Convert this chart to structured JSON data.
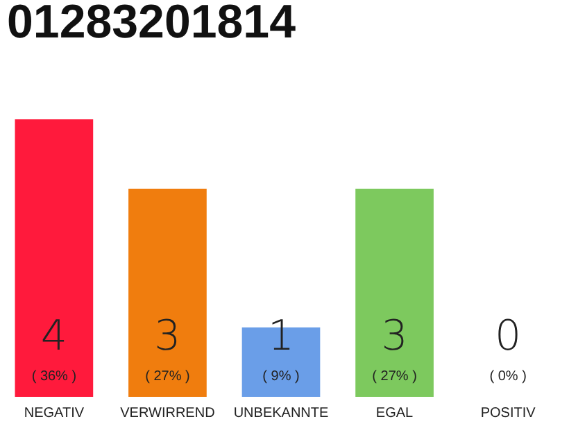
{
  "chart_data": {
    "type": "bar",
    "title": "01283201814",
    "categories": [
      "NEGATIV",
      "VERWIRREND",
      "UNBEKANNTE",
      "EGAL",
      "POSITIV"
    ],
    "values": [
      4,
      3,
      1,
      3,
      0
    ],
    "colors": [
      "#ff1a3c",
      "#f07d0e",
      "#6a9ee8",
      "#7dc95e",
      "#dddddd"
    ],
    "tick_labels": "x",
    "data_labels": true,
    "annotations": [
      {
        "text": "( 36% )",
        "x": "NEGATIV",
        "y": 0
      },
      {
        "text": "( 27% )",
        "x": "VERWIRREND",
        "y": 0
      },
      {
        "text": "( 9% )",
        "x": "UNBEKANNTE",
        "y": 0
      },
      {
        "text": "( 27% )",
        "x": "EGAL",
        "y": 0
      },
      {
        "text": "( 0% )",
        "x": "POSITIV",
        "y": 0
      }
    ]
  }
}
